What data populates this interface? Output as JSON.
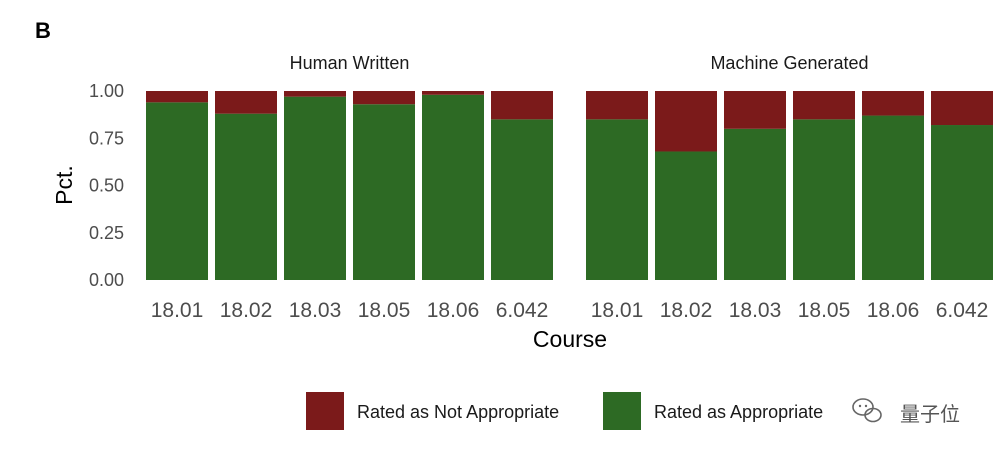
{
  "panel_label": "B",
  "colors": {
    "not_appropriate": "#7b1a1a",
    "appropriate": "#2d6a24",
    "plot_background": "#ffffff"
  },
  "watermark": {
    "icon": "wechat-icon",
    "text": "量子位"
  },
  "chart_data": {
    "type": "bar",
    "stacked": true,
    "xlabel": "Course",
    "ylabel": "Pct.",
    "ylim": [
      0,
      1
    ],
    "yticks": [
      "0.00",
      "0.25",
      "0.50",
      "0.75",
      "1.00"
    ],
    "legend": {
      "placement": "bottom",
      "entries": [
        "Rated as Not Appropriate",
        "Rated as Appropriate"
      ]
    },
    "facets": [
      {
        "title": "Human Written",
        "categories": [
          "18.01",
          "18.02",
          "18.03",
          "18.05",
          "18.06",
          "6.042"
        ],
        "series": [
          {
            "name": "Rated as Appropriate",
            "values": [
              0.94,
              0.88,
              0.97,
              0.93,
              0.98,
              0.85
            ]
          },
          {
            "name": "Rated as Not Appropriate",
            "values": [
              0.06,
              0.12,
              0.03,
              0.07,
              0.02,
              0.15
            ]
          }
        ]
      },
      {
        "title": "Machine Generated",
        "categories": [
          "18.01",
          "18.02",
          "18.03",
          "18.05",
          "18.06",
          "6.042"
        ],
        "series": [
          {
            "name": "Rated as Appropriate",
            "values": [
              0.85,
              0.68,
              0.8,
              0.85,
              0.87,
              0.82
            ]
          },
          {
            "name": "Rated as Not Appropriate",
            "values": [
              0.15,
              0.32,
              0.2,
              0.15,
              0.13,
              0.18
            ]
          }
        ]
      }
    ]
  }
}
